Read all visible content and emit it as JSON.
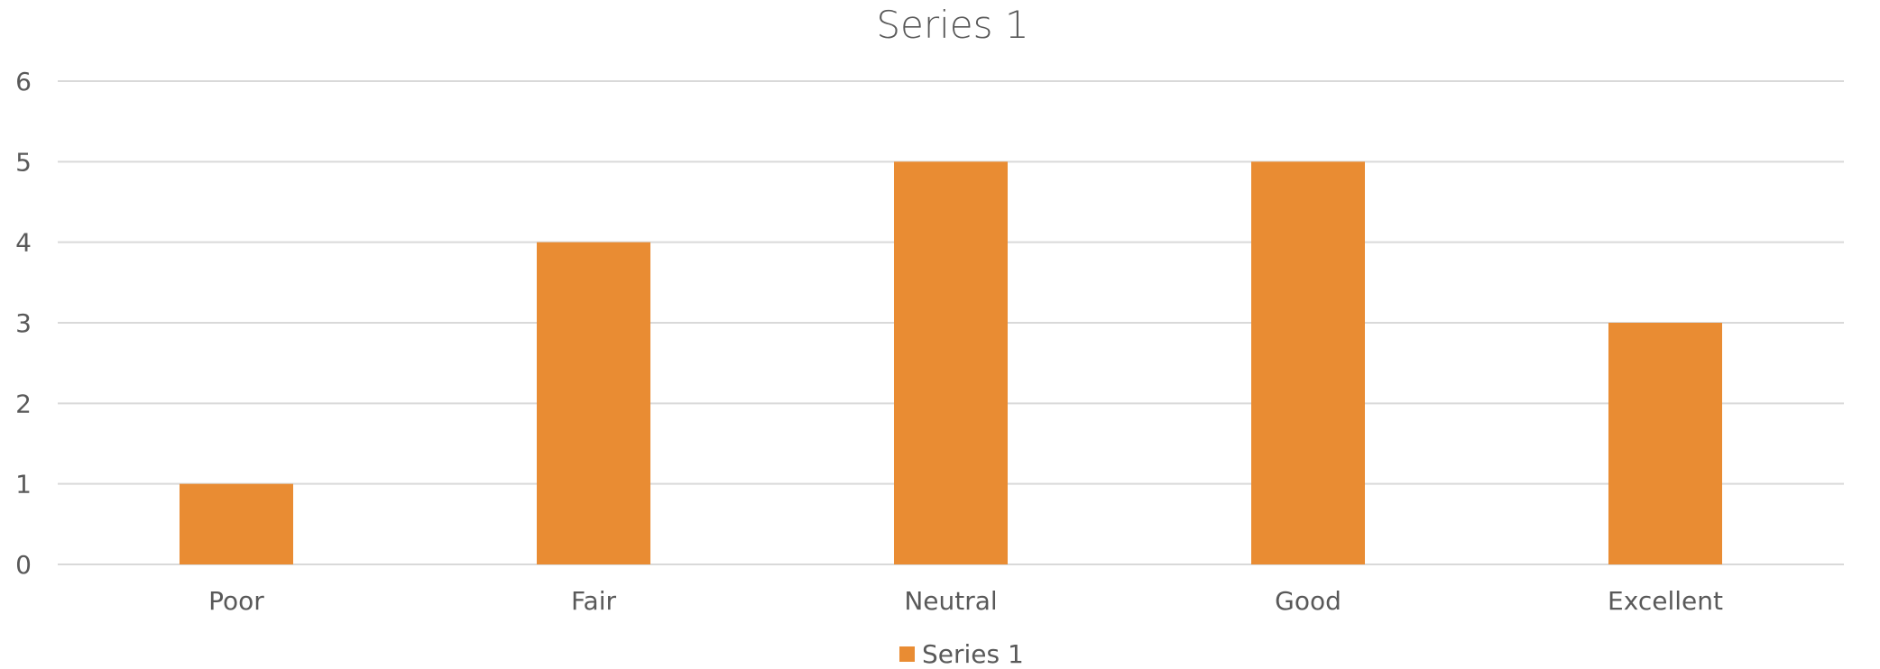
{
  "chart_data": {
    "type": "bar",
    "title": "Series 1",
    "categories": [
      "Poor",
      "Fair",
      "Neutral",
      "Good",
      "Excellent"
    ],
    "series": [
      {
        "name": "Series 1",
        "values": [
          1,
          4,
          5,
          5,
          3
        ],
        "color": "#E98C33"
      }
    ],
    "xlabel": "",
    "ylabel": "",
    "ylim": [
      0,
      6
    ],
    "yticks": [
      0,
      1,
      2,
      3,
      4,
      5,
      6
    ],
    "grid": true,
    "legend_position": "bottom"
  }
}
